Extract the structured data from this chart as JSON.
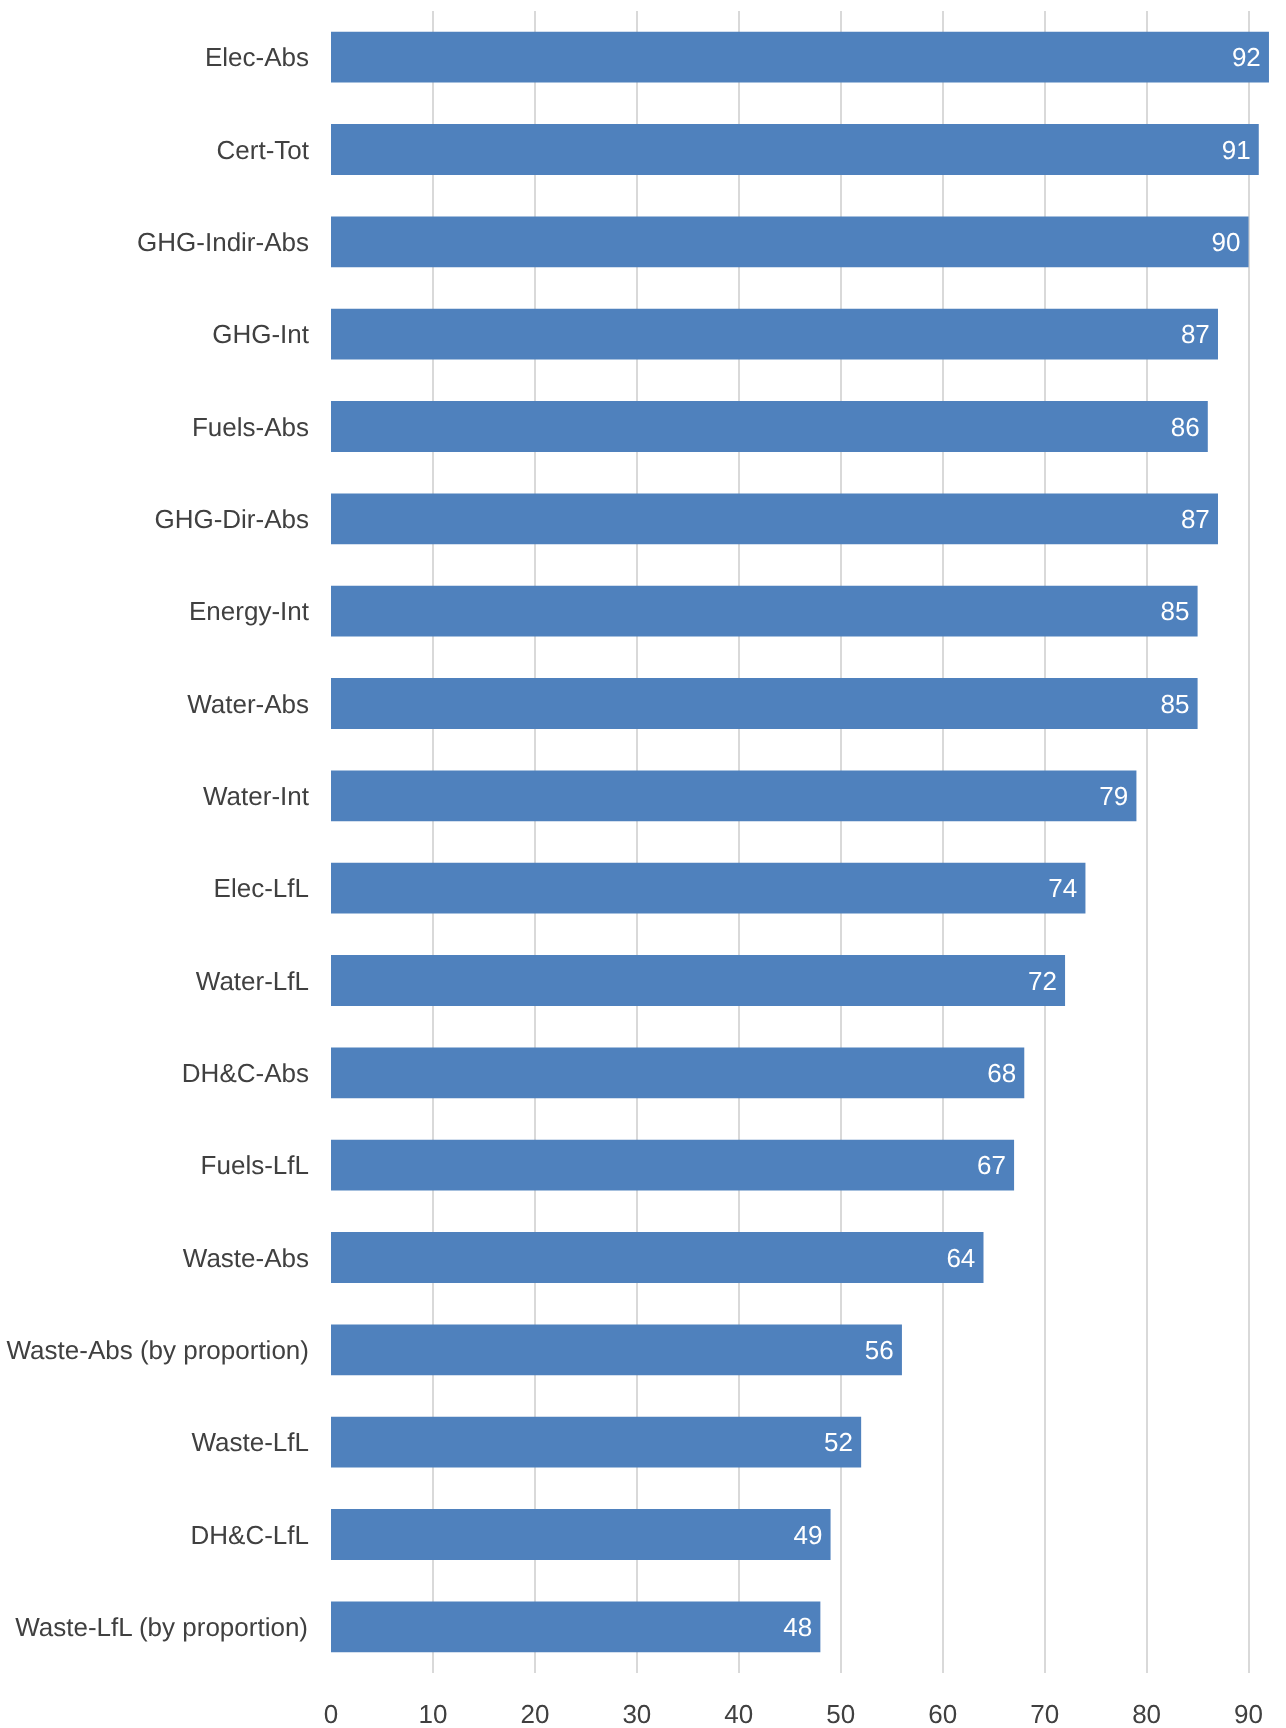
{
  "chart_data": {
    "type": "bar",
    "orientation": "horizontal",
    "categories": [
      "Elec-Abs",
      "Cert-Tot",
      "GHG-Indir-Abs",
      "GHG-Int",
      "Fuels-Abs",
      "GHG-Dir-Abs",
      "Energy-Int",
      "Water-Abs",
      "Water-Int",
      "Elec-LfL",
      "Water-LfL",
      "DH&C-Abs",
      "Fuels-LfL",
      "Waste-Abs",
      "Waste-Abs (by proportion)",
      "Waste-LfL",
      "DH&C-LfL",
      "Waste-LfL (by proportion)"
    ],
    "values": [
      92,
      91,
      90,
      87,
      86,
      87,
      85,
      85,
      79,
      74,
      72,
      68,
      67,
      64,
      56,
      52,
      49,
      48
    ],
    "color": "#4f81bd",
    "xlim": [
      0,
      92.2
    ],
    "xticks": [
      0,
      10,
      20,
      30,
      40,
      50,
      60,
      70,
      80,
      90
    ],
    "grid": "x",
    "data_labels": true
  }
}
